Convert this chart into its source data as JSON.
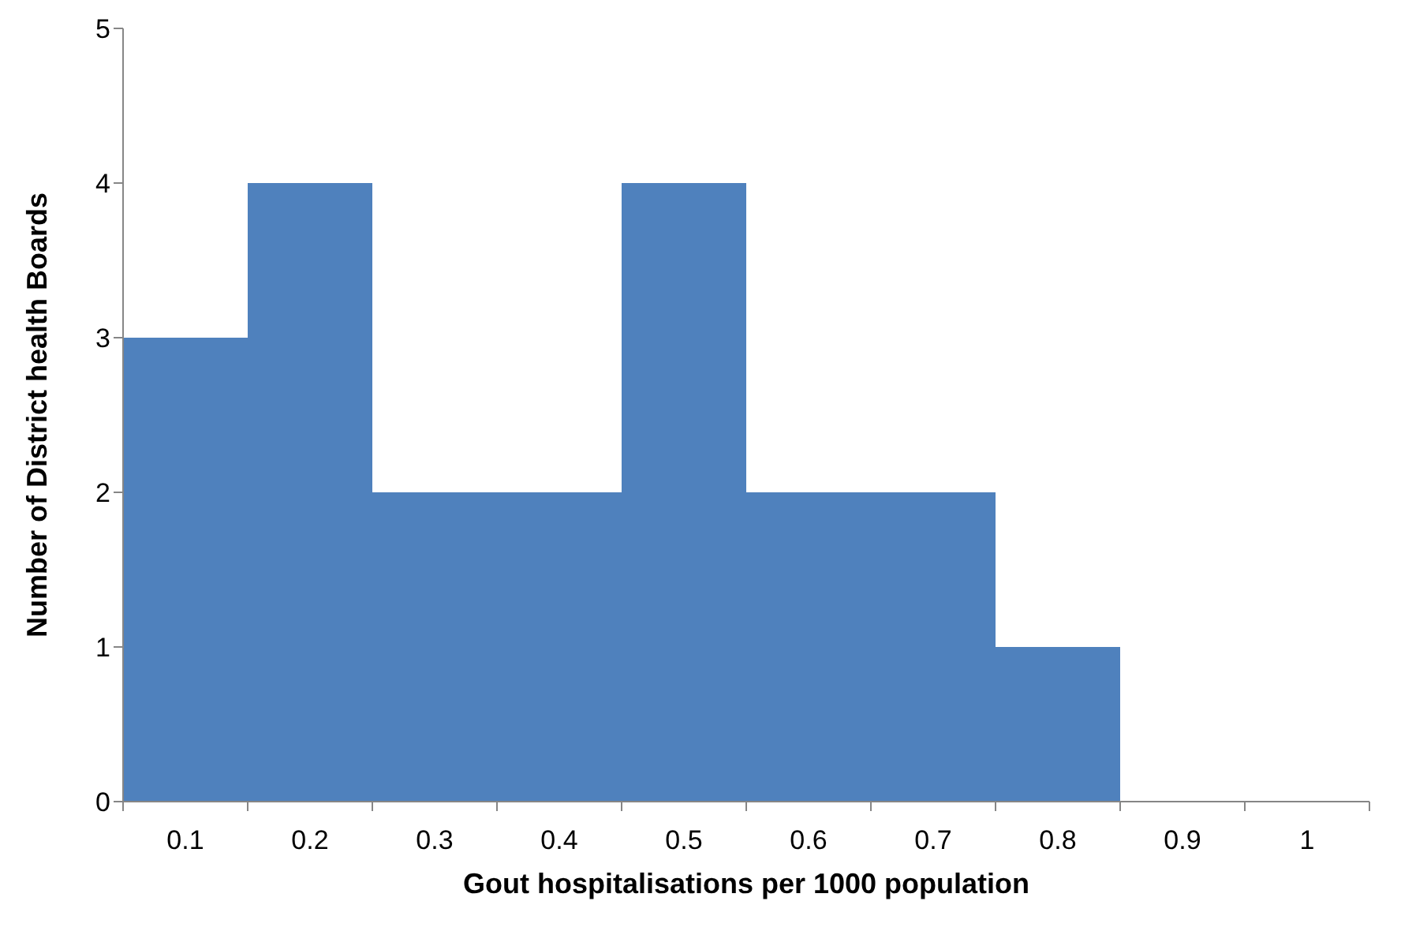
{
  "chart_data": {
    "type": "bar",
    "xlabel": "Gout hospitalisations per 1000 population",
    "ylabel": "Number of District health Boards",
    "categories": [
      "0.1",
      "0.2",
      "0.3",
      "0.4",
      "0.5",
      "0.6",
      "0.7",
      "0.8",
      "0.9",
      "1"
    ],
    "values": [
      3,
      4,
      2,
      2,
      4,
      2,
      2,
      1,
      0,
      0
    ],
    "color": "#4f81bd",
    "ylim": [
      0,
      5
    ],
    "yticks": [
      0,
      1,
      2,
      3,
      4,
      5
    ],
    "grid": false
  }
}
